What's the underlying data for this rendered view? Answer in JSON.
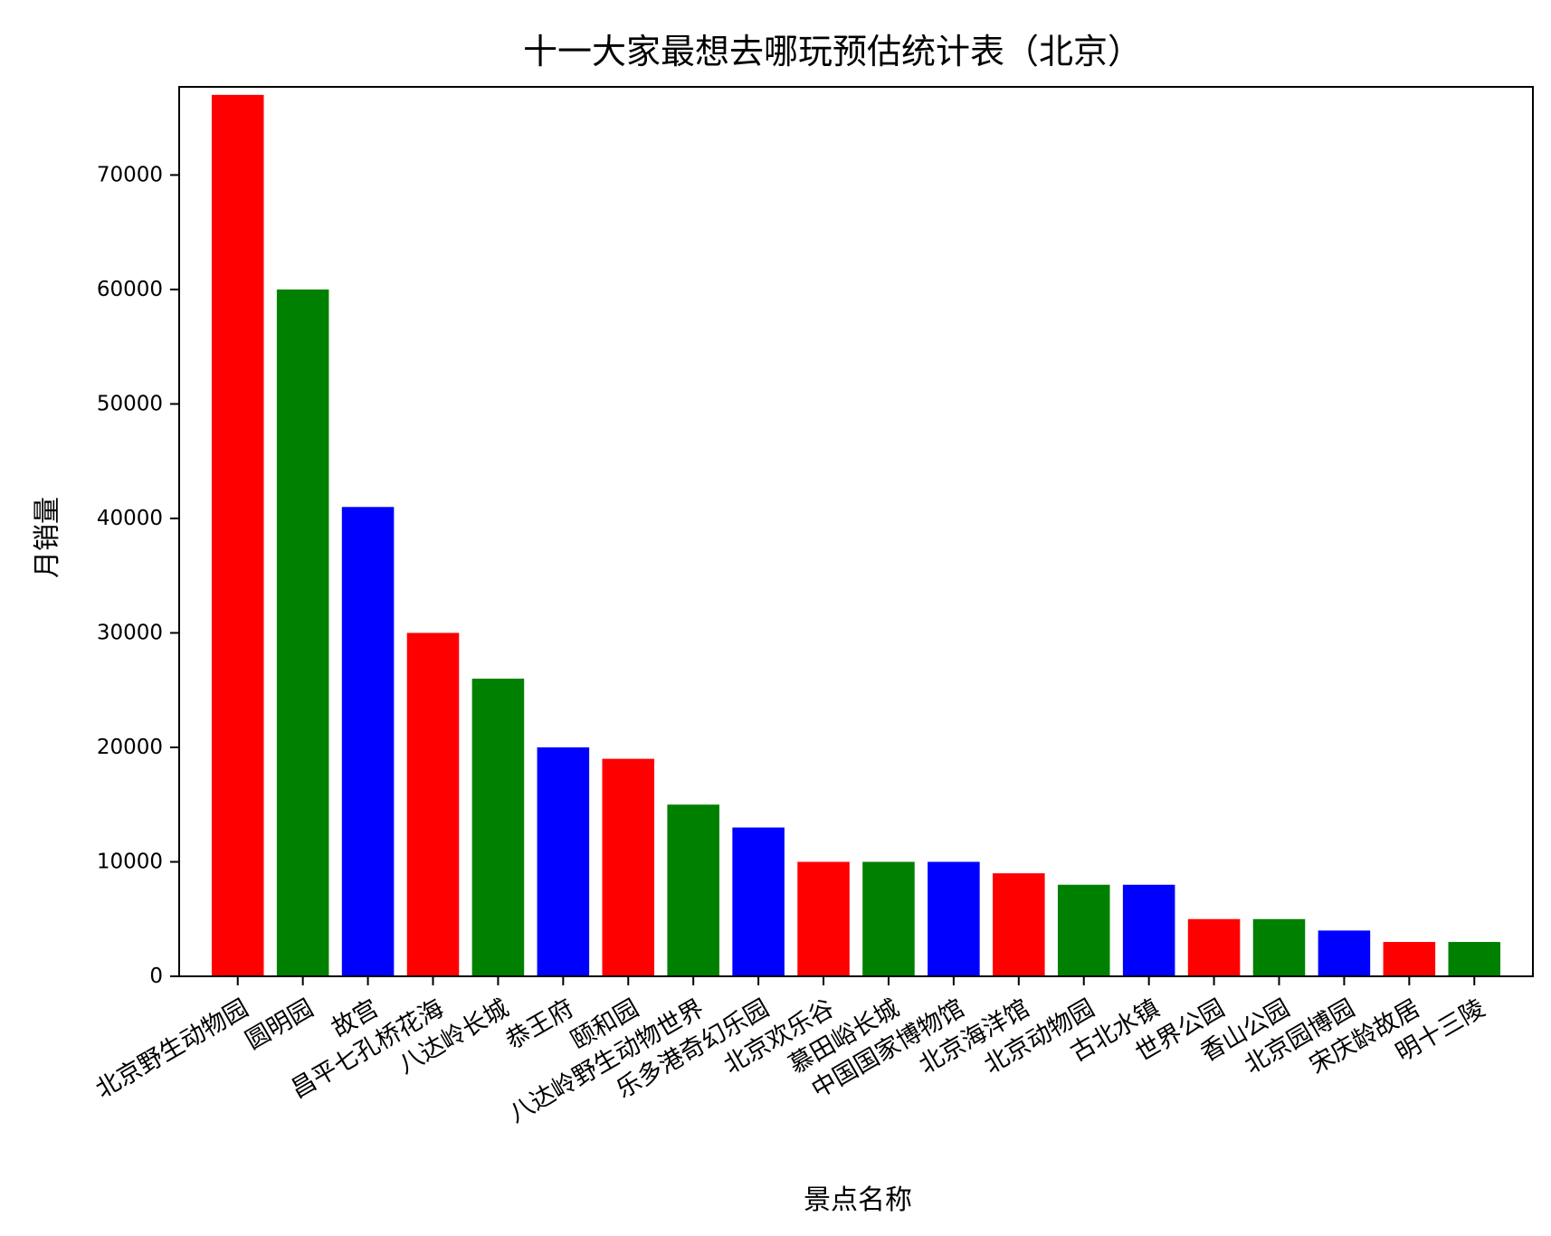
{
  "chart_data": {
    "type": "bar",
    "title": "十一大家最想去哪玩预估统计表（北京）",
    "xlabel": "景点名称",
    "ylabel": "月销量",
    "categories": [
      "北京野生动物园",
      "圆明园",
      "故宫",
      "昌平七孔桥花海",
      "八达岭长城",
      "恭王府",
      "颐和园",
      "八达岭野生动物世界",
      "乐多港奇幻乐园",
      "北京欢乐谷",
      "慕田峪长城",
      "中国国家博物馆",
      "北京海洋馆",
      "北京动物园",
      "古北水镇",
      "世界公园",
      "香山公园",
      "北京园博园",
      "宋庆龄故居",
      "明十三陵"
    ],
    "values": [
      77000,
      60000,
      41000,
      30000,
      26000,
      20000,
      19000,
      15000,
      13000,
      10000,
      10000,
      10000,
      9000,
      8000,
      8000,
      5000,
      5000,
      4000,
      3000,
      3000
    ],
    "bar_colors": [
      "#ff0000",
      "#008000",
      "#0000ff"
    ],
    "ylim": [
      0,
      77700
    ],
    "yticks": [
      0,
      10000,
      20000,
      30000,
      40000,
      50000,
      60000,
      70000
    ],
    "grid": false,
    "legend": "none"
  }
}
